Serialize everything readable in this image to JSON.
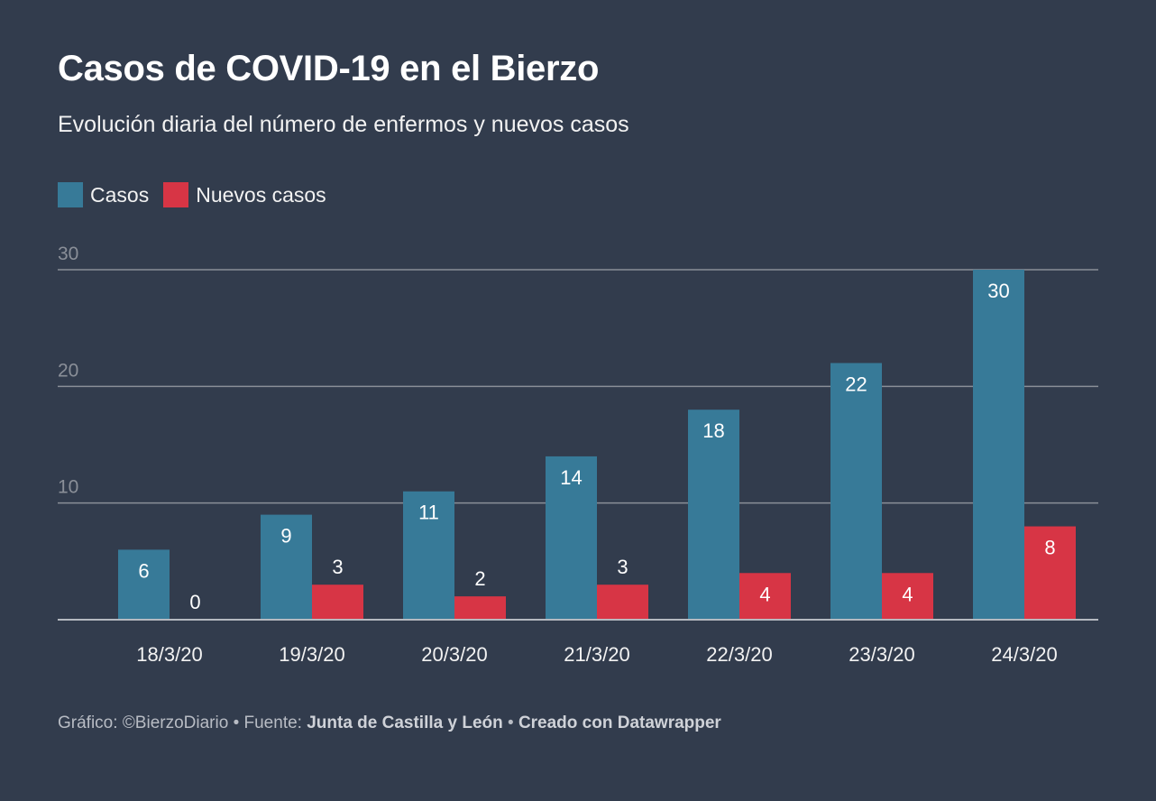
{
  "header": {
    "title": "Casos de COVID-19 en el Bierzo",
    "subtitle": "Evolución diaria del número de enfermos y nuevos casos"
  },
  "footer": {
    "grafico_label": "Gráfico: ",
    "grafico_value": "©BierzoDiario",
    "fuente_label": " • Fuente: ",
    "fuente_value": "Junta de Castilla y León",
    "separator": " • ",
    "creado": "Creado con Datawrapper"
  },
  "colors": {
    "background": "#323c4d",
    "casos": "#377a98",
    "nuevos_casos": "#d73545",
    "grid": "#8a8f98",
    "tick_text": "#8a8f98"
  },
  "chart_data": {
    "type": "bar",
    "categories": [
      "18/3/20",
      "19/3/20",
      "20/3/20",
      "21/3/20",
      "22/3/20",
      "23/3/20",
      "24/3/20"
    ],
    "series": [
      {
        "name": "Casos",
        "values": [
          6,
          9,
          11,
          14,
          18,
          22,
          30
        ]
      },
      {
        "name": "Nuevos casos",
        "values": [
          0,
          3,
          2,
          3,
          4,
          4,
          8
        ]
      }
    ],
    "yticks": [
      10,
      20,
      30
    ],
    "ylim": [
      0,
      30
    ],
    "grid": true,
    "legend": "top-left"
  }
}
